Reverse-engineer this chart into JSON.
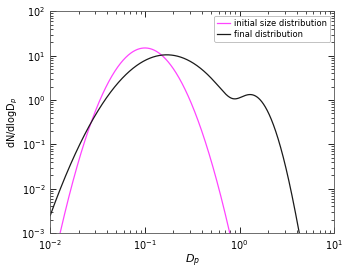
{
  "title": "",
  "xlabel": "D_p",
  "ylabel": "dN/dlogD_p",
  "xlim": [
    0.01,
    10
  ],
  "ylim": [
    0.001,
    100.0
  ],
  "initial_color": "#ff44ff",
  "final_color": "#1a1a1a",
  "legend_labels": [
    "initial size distribution",
    "final distribution"
  ],
  "legend_colors": [
    "#ff44ff",
    "#1a1a1a"
  ],
  "background_color": "#ffffff"
}
